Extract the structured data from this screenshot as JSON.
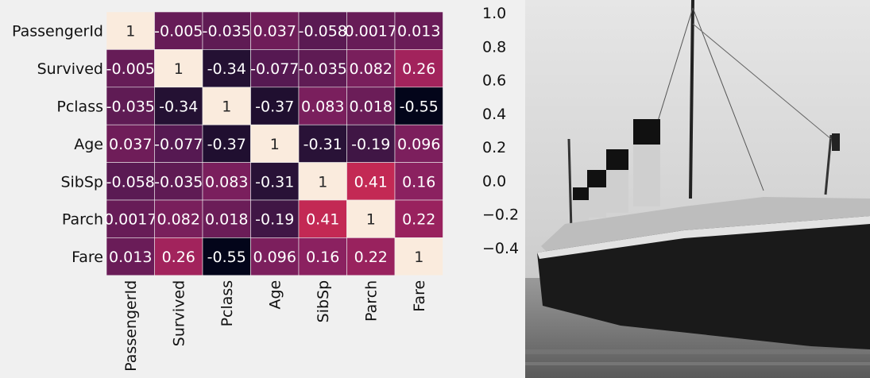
{
  "chart_data": {
    "type": "heatmap",
    "labels": [
      "PassengerId",
      "Survived",
      "Pclass",
      "Age",
      "SibSp",
      "Parch",
      "Fare"
    ],
    "values": [
      [
        1,
        -0.005,
        -0.035,
        0.037,
        -0.058,
        0.0017,
        0.013
      ],
      [
        -0.005,
        1,
        -0.34,
        -0.077,
        -0.035,
        0.082,
        0.26
      ],
      [
        -0.035,
        -0.34,
        1,
        -0.37,
        0.083,
        0.018,
        -0.55
      ],
      [
        0.037,
        -0.077,
        -0.37,
        1,
        -0.31,
        -0.19,
        0.096
      ],
      [
        -0.058,
        -0.035,
        0.083,
        -0.31,
        1,
        0.41,
        0.16
      ],
      [
        0.0017,
        0.082,
        0.018,
        -0.19,
        0.41,
        1,
        0.22
      ],
      [
        0.013,
        0.26,
        -0.55,
        0.096,
        0.16,
        0.22,
        1
      ]
    ],
    "cell_text": [
      [
        "1",
        "-0.005",
        "-0.035",
        "0.037",
        "-0.058",
        "0.0017",
        "0.013"
      ],
      [
        "-0.005",
        "1",
        "-0.34",
        "-0.077",
        "-0.035",
        "0.082",
        "0.26"
      ],
      [
        "-0.035",
        "-0.34",
        "1",
        "-0.37",
        "0.083",
        "0.018",
        "-0.55"
      ],
      [
        "0.037",
        "-0.077",
        "-0.37",
        "1",
        "-0.31",
        "-0.19",
        "0.096"
      ],
      [
        "-0.058",
        "-0.035",
        "0.083",
        "-0.31",
        "1",
        "0.41",
        "0.16"
      ],
      [
        "0.0017",
        "0.082",
        "0.018",
        "-0.19",
        "0.41",
        "1",
        "0.22"
      ],
      [
        "0.013",
        "0.26",
        "-0.55",
        "0.096",
        "0.16",
        "0.22",
        "1"
      ]
    ],
    "colorbar": {
      "range": [
        -0.55,
        1.0
      ],
      "ticks": [
        1.0,
        0.8,
        0.6,
        0.4,
        0.2,
        0.0,
        -0.2,
        -0.4
      ],
      "tick_labels": [
        "1.0",
        "0.8",
        "0.6",
        "0.4",
        "0.2",
        "0.0",
        "−0.2",
        "−0.4"
      ]
    },
    "colormap": "rocket"
  },
  "photo": {
    "subject": "ship-photo"
  }
}
